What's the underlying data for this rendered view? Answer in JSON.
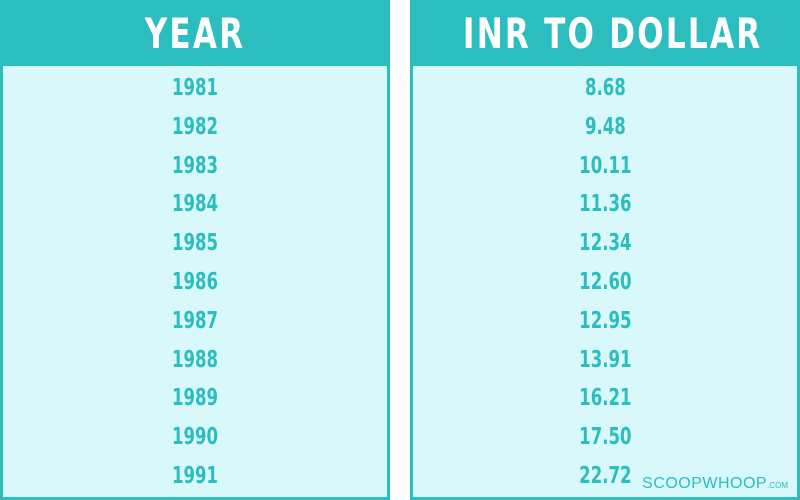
{
  "chart_data": {
    "type": "table",
    "columns": [
      "YEAR",
      "INR TO DOLLAR"
    ],
    "rows": [
      [
        "1981",
        "8.68"
      ],
      [
        "1982",
        "9.48"
      ],
      [
        "1983",
        "10.11"
      ],
      [
        "1984",
        "11.36"
      ],
      [
        "1985",
        "12.34"
      ],
      [
        "1986",
        "12.60"
      ],
      [
        "1987",
        "12.95"
      ],
      [
        "1988",
        "13.91"
      ],
      [
        "1989",
        "16.21"
      ],
      [
        "1990",
        "17.50"
      ],
      [
        "1991",
        "22.72"
      ]
    ]
  },
  "watermark": {
    "name": "SCOOPWHOOP",
    "suffix": ".COM"
  },
  "colors": {
    "accent": "#2cbdbe",
    "cell_background": "#d8f8f9",
    "header_text": "#ffffff"
  }
}
